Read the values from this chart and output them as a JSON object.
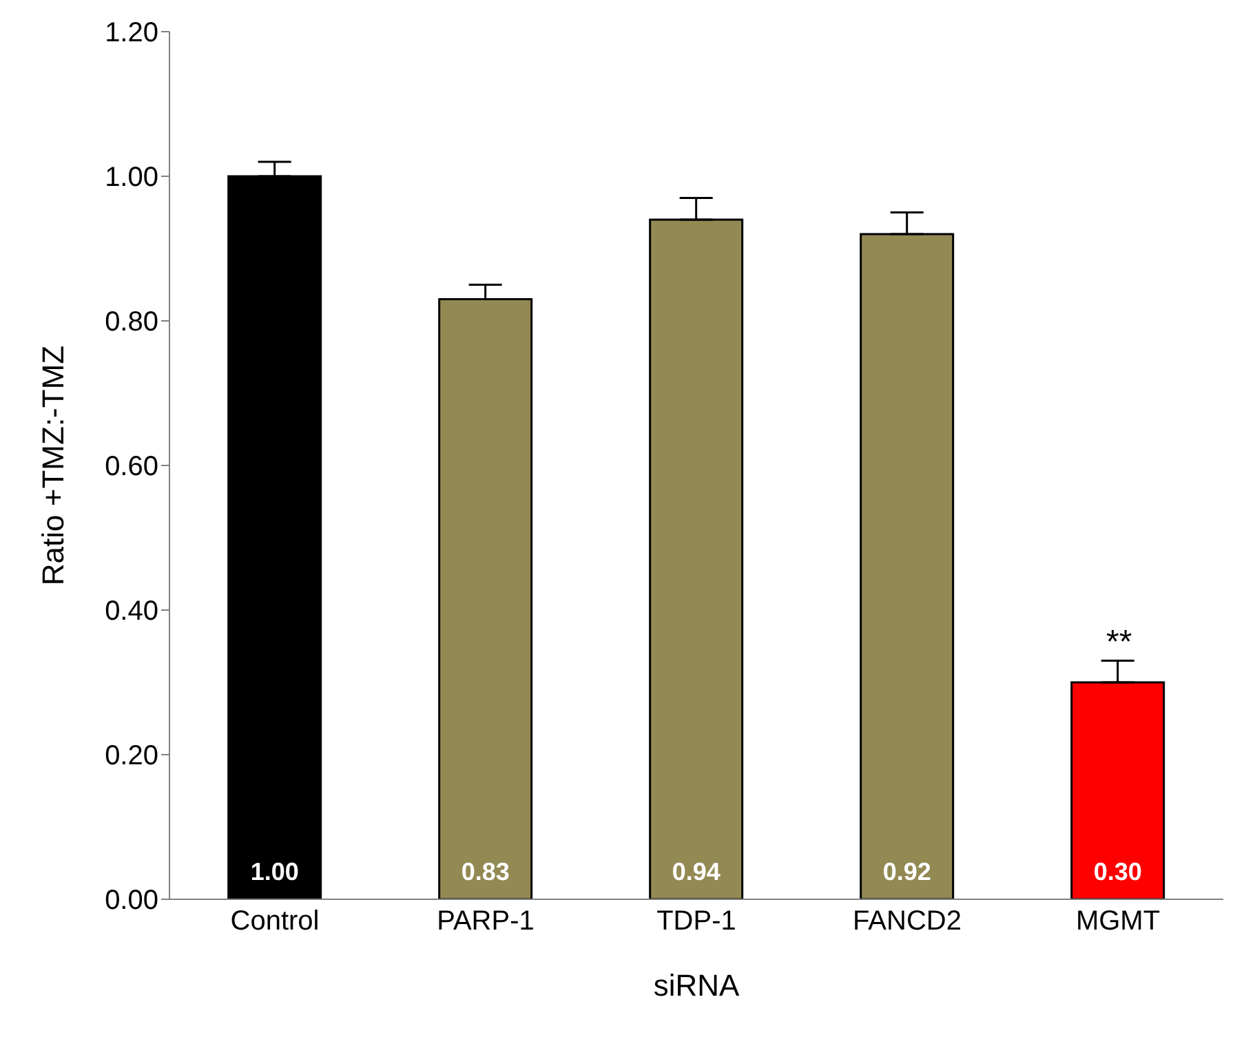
{
  "chart_data": {
    "type": "bar",
    "xlabel": "siRNA",
    "ylabel": "Ratio +TMZ:-TMZ",
    "categories": [
      "Control",
      "PARP-1",
      "TDP-1",
      "FANCD2",
      "MGMT"
    ],
    "values": [
      1.0,
      0.83,
      0.94,
      0.92,
      0.3
    ],
    "colors": [
      "#000000",
      "#938953",
      "#938953",
      "#938953",
      "#ff0000"
    ],
    "errors": [
      [
        1.0,
        1.02
      ],
      [
        0.83,
        0.85
      ],
      [
        0.94,
        0.97
      ],
      [
        0.92,
        0.95
      ],
      [
        0.3,
        0.33
      ]
    ],
    "value_labels": [
      "1.00",
      "0.83",
      "0.94",
      "0.92",
      "0.30"
    ],
    "annotations": [
      "**"
    ],
    "ylim": [
      0,
      1.2
    ],
    "yticks": [
      {
        "value": 0,
        "label": "0.00"
      },
      {
        "value": 0.2,
        "label": "0.20"
      },
      {
        "value": 0.4,
        "label": "0.40"
      },
      {
        "value": 0.6,
        "label": "0.60"
      },
      {
        "value": 0.8,
        "label": "0.80"
      },
      {
        "value": 1,
        "label": "1.00"
      },
      {
        "value": 1.2,
        "label": "1.20"
      }
    ],
    "grid": false,
    "legend": false
  }
}
